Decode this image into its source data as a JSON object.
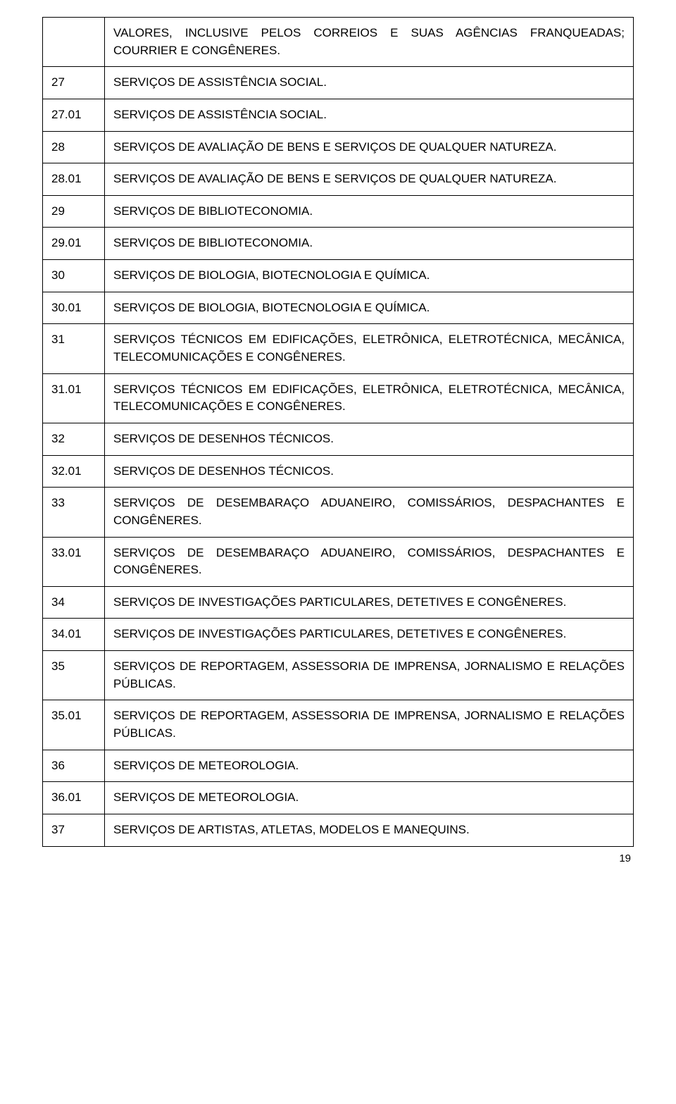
{
  "rows": [
    {
      "code": "",
      "desc": "VALORES, INCLUSIVE PELOS CORREIOS E SUAS AGÊNCIAS FRANQUEADAS; COURRIER E CONGÊNERES.",
      "justify": "normal"
    },
    {
      "code": "27",
      "desc": "SERVIÇOS DE ASSISTÊNCIA SOCIAL.",
      "justify": "left"
    },
    {
      "code": "27.01",
      "desc": "SERVIÇOS DE ASSISTÊNCIA SOCIAL.",
      "justify": "left"
    },
    {
      "code": "28",
      "desc": "SERVIÇOS DE AVALIAÇÃO DE BENS E SERVIÇOS DE QUALQUER NATUREZA.",
      "justify": "normal"
    },
    {
      "code": "28.01",
      "desc": "SERVIÇOS DE AVALIAÇÃO DE BENS E SERVIÇOS DE QUALQUER NATUREZA.",
      "justify": "normal"
    },
    {
      "code": "29",
      "desc": "SERVIÇOS DE BIBLIOTECONOMIA.",
      "justify": "left"
    },
    {
      "code": "29.01",
      "desc": "SERVIÇOS DE BIBLIOTECONOMIA.",
      "justify": "left"
    },
    {
      "code": "30",
      "desc": "SERVIÇOS DE BIOLOGIA, BIOTECNOLOGIA E QUÍMICA.",
      "justify": "left"
    },
    {
      "code": "30.01",
      "desc": "SERVIÇOS DE BIOLOGIA, BIOTECNOLOGIA E QUÍMICA.",
      "justify": "left"
    },
    {
      "code": "31",
      "desc": "SERVIÇOS TÉCNICOS EM EDIFICAÇÕES, ELETRÔNICA, ELETROTÉCNICA, MECÂNICA, TELECOMUNICAÇÕES E CONGÊNERES.",
      "justify": "normal"
    },
    {
      "code": "31.01",
      "desc": "SERVIÇOS TÉCNICOS EM EDIFICAÇÕES, ELETRÔNICA, ELETROTÉCNICA, MECÂNICA, TELECOMUNICAÇÕES E CONGÊNERES.",
      "justify": "normal"
    },
    {
      "code": "32",
      "desc": "SERVIÇOS DE DESENHOS TÉCNICOS.",
      "justify": "left"
    },
    {
      "code": "32.01",
      "desc": "SERVIÇOS DE DESENHOS TÉCNICOS.",
      "justify": "left"
    },
    {
      "code": "33",
      "desc": "SERVIÇOS DE DESEMBARAÇO ADUANEIRO, COMISSÁRIOS, DESPACHANTES E CONGÊNERES.",
      "justify": "normal"
    },
    {
      "code": "33.01",
      "desc": "SERVIÇOS DE DESEMBARAÇO ADUANEIRO, COMISSÁRIOS, DESPACHANTES E CONGÊNERES.",
      "justify": "normal"
    },
    {
      "code": "34",
      "desc": "SERVIÇOS DE INVESTIGAÇÕES PARTICULARES, DETETIVES E CONGÊNERES.",
      "justify": "normal"
    },
    {
      "code": "34.01",
      "desc": "SERVIÇOS DE INVESTIGAÇÕES PARTICULARES, DETETIVES E CONGÊNERES.",
      "justify": "normal"
    },
    {
      "code": "35",
      "desc": "SERVIÇOS DE REPORTAGEM, ASSESSORIA DE IMPRENSA, JORNALISMO E RELAÇÕES PÚBLICAS.",
      "justify": "normal"
    },
    {
      "code": "35.01",
      "desc": "SERVIÇOS DE REPORTAGEM, ASSESSORIA DE IMPRENSA, JORNALISMO E RELAÇÕES PÚBLICAS.",
      "justify": "normal"
    },
    {
      "code": "36",
      "desc": "SERVIÇOS DE METEOROLOGIA.",
      "justify": "left"
    },
    {
      "code": "36.01",
      "desc": "SERVIÇOS DE METEOROLOGIA.",
      "justify": "left"
    },
    {
      "code": "37",
      "desc": "SERVIÇOS DE ARTISTAS, ATLETAS, MODELOS E MANEQUINS.",
      "justify": "left"
    }
  ],
  "page_number": "19"
}
